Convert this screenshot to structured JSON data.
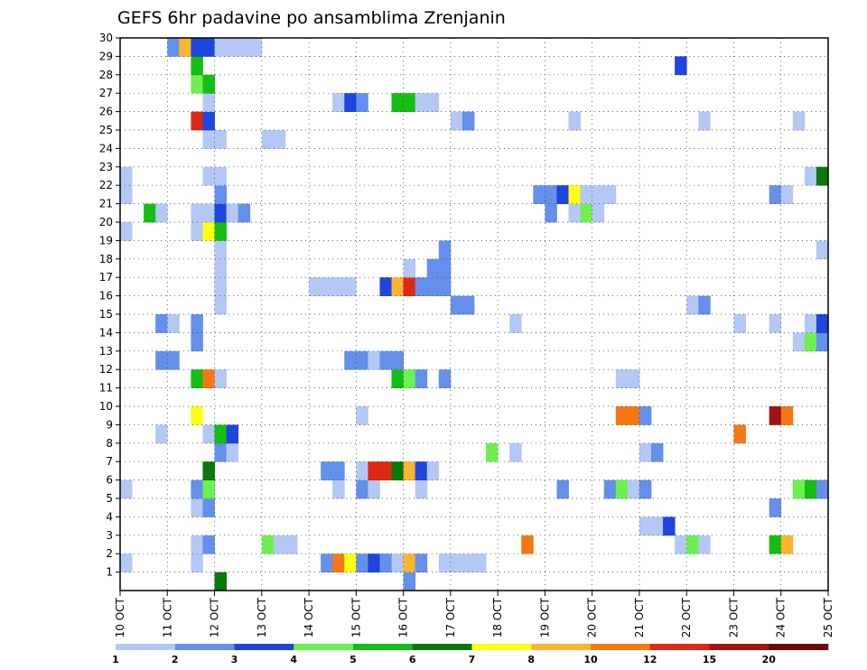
{
  "chart_data": {
    "type": "heatmap",
    "title": "GEFS 6hr padavine po ansamblima Zrenjanin",
    "xlabel": "",
    "ylabel": "",
    "x_ticks": [
      "10 OCT",
      "11 OCT",
      "12 OCT",
      "13 OCT",
      "14 OCT",
      "15 OCT",
      "16 OCT",
      "17 OCT",
      "18 OCT",
      "19 OCT",
      "20 OCT",
      "21 OCT",
      "22 OCT",
      "23 OCT",
      "24 OCT",
      "25 OCT"
    ],
    "y_ticks": [
      "1",
      "2",
      "3",
      "4",
      "5",
      "6",
      "7",
      "8",
      "9",
      "10",
      "11",
      "12",
      "13",
      "14",
      "15",
      "16",
      "17",
      "18",
      "19",
      "20",
      "21",
      "22",
      "23",
      "24",
      "25",
      "26",
      "27",
      "28",
      "29",
      "30"
    ],
    "x_range": [
      "10 OCT",
      "25 OCT"
    ],
    "y_range": [
      0,
      30
    ],
    "grid": true,
    "colorbar": {
      "labels": [
        "1",
        "2",
        "3",
        "4",
        "5",
        "6",
        "7",
        "8",
        "10",
        "12",
        "15",
        "20"
      ],
      "colors": [
        "#b4c8f5",
        "#6490eb",
        "#1e46dc",
        "#6ef050",
        "#14be14",
        "#0a780a",
        "#ffff14",
        "#ffb432",
        "#f57814",
        "#dc2814",
        "#a01414",
        "#6e0a0a"
      ]
    },
    "cells": [
      [
        12.0,
        0,
        5
      ],
      [
        16.0,
        0,
        1
      ],
      [
        10.0,
        1,
        0
      ],
      [
        11.5,
        1,
        0
      ],
      [
        14.25,
        1,
        1
      ],
      [
        14.5,
        1,
        8
      ],
      [
        14.75,
        1,
        6
      ],
      [
        15.0,
        1,
        1
      ],
      [
        15.25,
        1,
        2
      ],
      [
        15.5,
        1,
        1
      ],
      [
        15.75,
        1,
        0
      ],
      [
        16.0,
        1,
        7
      ],
      [
        16.25,
        1,
        1
      ],
      [
        16.75,
        1,
        0
      ],
      [
        17.0,
        1,
        0
      ],
      [
        17.25,
        1,
        0
      ],
      [
        17.5,
        1,
        0
      ],
      [
        11.5,
        2,
        0
      ],
      [
        11.75,
        2,
        1
      ],
      [
        13.0,
        2,
        3
      ],
      [
        13.25,
        2,
        0
      ],
      [
        13.5,
        2,
        0
      ],
      [
        18.5,
        2,
        8
      ],
      [
        21.75,
        2,
        0
      ],
      [
        22.0,
        2,
        3
      ],
      [
        22.25,
        2,
        0
      ],
      [
        23.75,
        2,
        4
      ],
      [
        24.0,
        2,
        7
      ],
      [
        21.0,
        3,
        0
      ],
      [
        21.25,
        3,
        0
      ],
      [
        21.5,
        3,
        2
      ],
      [
        11.5,
        4,
        0
      ],
      [
        11.75,
        4,
        1
      ],
      [
        23.75,
        4,
        1
      ],
      [
        10.0,
        5,
        0
      ],
      [
        11.5,
        5,
        1
      ],
      [
        11.75,
        5,
        3
      ],
      [
        14.5,
        5,
        0
      ],
      [
        15.0,
        5,
        1
      ],
      [
        15.25,
        5,
        0
      ],
      [
        16.25,
        5,
        0
      ],
      [
        19.25,
        5,
        1
      ],
      [
        20.25,
        5,
        1
      ],
      [
        20.5,
        5,
        3
      ],
      [
        20.75,
        5,
        0
      ],
      [
        21.0,
        5,
        1
      ],
      [
        24.25,
        5,
        3
      ],
      [
        24.5,
        5,
        4
      ],
      [
        24.75,
        5,
        1
      ],
      [
        11.75,
        6,
        5
      ],
      [
        14.25,
        6,
        1
      ],
      [
        14.5,
        6,
        1
      ],
      [
        15.0,
        6,
        0
      ],
      [
        15.25,
        6,
        9
      ],
      [
        15.5,
        6,
        9
      ],
      [
        15.75,
        6,
        5
      ],
      [
        16.0,
        6,
        7
      ],
      [
        16.25,
        6,
        2
      ],
      [
        16.5,
        6,
        0
      ],
      [
        12.0,
        7,
        1
      ],
      [
        12.25,
        7,
        0
      ],
      [
        17.75,
        7,
        3
      ],
      [
        18.25,
        7,
        0
      ],
      [
        21.0,
        7,
        0
      ],
      [
        21.25,
        7,
        1
      ],
      [
        10.75,
        8,
        0
      ],
      [
        11.75,
        8,
        0
      ],
      [
        12.0,
        8,
        4
      ],
      [
        12.25,
        8,
        2
      ],
      [
        23.0,
        8,
        8
      ],
      [
        11.5,
        9,
        6
      ],
      [
        15.0,
        9,
        0
      ],
      [
        20.5,
        9,
        8
      ],
      [
        20.75,
        9,
        8
      ],
      [
        21.0,
        9,
        1
      ],
      [
        23.75,
        9,
        10
      ],
      [
        24.0,
        9,
        8
      ],
      [
        11.5,
        11,
        4
      ],
      [
        11.75,
        11,
        8
      ],
      [
        12.0,
        11,
        0
      ],
      [
        15.75,
        11,
        4
      ],
      [
        16.0,
        11,
        3
      ],
      [
        16.25,
        11,
        1
      ],
      [
        16.75,
        11,
        1
      ],
      [
        20.5,
        11,
        0
      ],
      [
        20.75,
        11,
        0
      ],
      [
        10.75,
        12,
        1
      ],
      [
        11.0,
        12,
        1
      ],
      [
        14.75,
        12,
        1
      ],
      [
        15.0,
        12,
        1
      ],
      [
        15.25,
        12,
        0
      ],
      [
        15.5,
        12,
        1
      ],
      [
        15.75,
        12,
        1
      ],
      [
        11.5,
        13,
        1
      ],
      [
        24.25,
        13,
        0
      ],
      [
        24.5,
        13,
        3
      ],
      [
        24.75,
        13,
        1
      ],
      [
        10.75,
        14,
        1
      ],
      [
        11.0,
        14,
        0
      ],
      [
        11.5,
        14,
        1
      ],
      [
        18.25,
        14,
        0
      ],
      [
        23.0,
        14,
        0
      ],
      [
        23.75,
        14,
        0
      ],
      [
        24.5,
        14,
        0
      ],
      [
        24.75,
        14,
        2
      ],
      [
        12.0,
        15,
        0
      ],
      [
        17.0,
        15,
        1
      ],
      [
        17.25,
        15,
        1
      ],
      [
        22.0,
        15,
        0
      ],
      [
        22.25,
        15,
        1
      ],
      [
        15.5,
        16,
        2
      ],
      [
        15.75,
        16,
        7
      ],
      [
        16.0,
        16,
        9
      ],
      [
        16.25,
        16,
        1
      ],
      [
        16.5,
        16,
        1
      ],
      [
        16.75,
        16,
        1
      ],
      [
        12.0,
        16,
        0
      ],
      [
        14.0,
        16,
        0
      ],
      [
        14.25,
        16,
        0
      ],
      [
        14.5,
        16,
        0
      ],
      [
        14.75,
        16,
        0
      ],
      [
        16.5,
        17,
        1
      ],
      [
        16.75,
        17,
        1
      ],
      [
        12.0,
        17,
        0
      ],
      [
        16.0,
        17,
        0
      ],
      [
        16.75,
        18,
        1
      ],
      [
        12.0,
        18,
        0
      ],
      [
        24.75,
        18,
        0
      ],
      [
        10.0,
        19,
        0
      ],
      [
        11.5,
        19,
        0
      ],
      [
        11.75,
        19,
        6
      ],
      [
        12.0,
        19,
        4
      ],
      [
        10.5,
        20,
        4
      ],
      [
        10.75,
        20,
        0
      ],
      [
        11.5,
        20,
        0
      ],
      [
        11.75,
        20,
        0
      ],
      [
        12.0,
        20,
        2
      ],
      [
        12.25,
        20,
        0
      ],
      [
        12.5,
        20,
        1
      ],
      [
        19.0,
        20,
        1
      ],
      [
        19.5,
        20,
        0
      ],
      [
        19.75,
        20,
        3
      ],
      [
        20.0,
        20,
        0
      ],
      [
        10.0,
        21,
        0
      ],
      [
        12.0,
        21,
        1
      ],
      [
        18.75,
        21,
        1
      ],
      [
        19.0,
        21,
        1
      ],
      [
        19.25,
        21,
        2
      ],
      [
        19.5,
        21,
        6
      ],
      [
        19.75,
        21,
        0
      ],
      [
        20.0,
        21,
        0
      ],
      [
        20.25,
        21,
        0
      ],
      [
        23.75,
        21,
        1
      ],
      [
        24.0,
        21,
        0
      ],
      [
        10.0,
        22,
        0
      ],
      [
        11.75,
        22,
        0
      ],
      [
        12.0,
        22,
        0
      ],
      [
        24.5,
        22,
        0
      ],
      [
        24.75,
        22,
        5
      ],
      [
        11.75,
        24,
        0
      ],
      [
        12.0,
        24,
        0
      ],
      [
        13.0,
        24,
        0
      ],
      [
        13.25,
        24,
        0
      ],
      [
        11.5,
        25,
        9
      ],
      [
        11.75,
        25,
        2
      ],
      [
        17.0,
        25,
        0
      ],
      [
        17.25,
        25,
        1
      ],
      [
        19.5,
        25,
        0
      ],
      [
        22.25,
        25,
        0
      ],
      [
        24.25,
        25,
        0
      ],
      [
        11.75,
        26,
        0
      ],
      [
        14.5,
        26,
        0
      ],
      [
        14.75,
        26,
        2
      ],
      [
        15.0,
        26,
        1
      ],
      [
        15.75,
        26,
        4
      ],
      [
        16.0,
        26,
        4
      ],
      [
        16.25,
        26,
        0
      ],
      [
        16.5,
        26,
        0
      ],
      [
        11.5,
        27,
        3
      ],
      [
        11.75,
        27,
        4
      ],
      [
        11.5,
        28,
        4
      ],
      [
        21.75,
        28,
        2
      ],
      [
        11.0,
        29,
        1
      ],
      [
        11.25,
        29,
        7
      ],
      [
        11.5,
        29,
        2
      ],
      [
        11.75,
        29,
        2
      ],
      [
        12.0,
        29,
        0
      ],
      [
        12.25,
        29,
        0
      ],
      [
        12.5,
        29,
        0
      ],
      [
        12.75,
        29,
        0
      ]
    ]
  }
}
